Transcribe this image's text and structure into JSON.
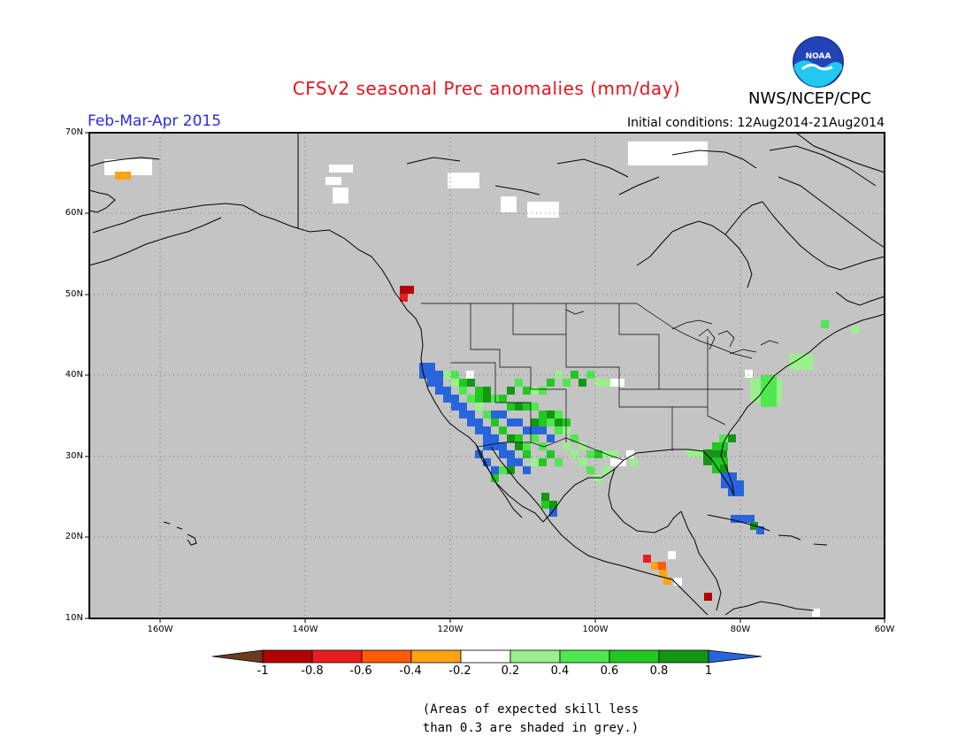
{
  "title": "CFSv2 seasonal Prec anomalies (mm/day)",
  "agency": "NWS/NCEP/CPC",
  "period": "Feb-Mar-Apr 2015",
  "initial_conditions": "Initial conditions: 12Aug2014-21Aug2014",
  "logo_text": "NOAA",
  "lat_labels": [
    "70N",
    "60N",
    "50N",
    "40N",
    "30N",
    "20N",
    "10N"
  ],
  "lon_labels": [
    "160W",
    "140W",
    "120W",
    "100W",
    "80W",
    "60W"
  ],
  "colorbar": {
    "labels": [
      "-1",
      "-0.8",
      "-0.6",
      "-0.4",
      "-0.2",
      "0.2",
      "0.4",
      "0.6",
      "0.8",
      "1"
    ],
    "colors": [
      "#6b3a20",
      "#b40000",
      "#e81e1e",
      "#ff5a0a",
      "#ffa214",
      "#ffffff",
      "#9af08c",
      "#50e650",
      "#21c821",
      "#149614",
      "#2864dc"
    ]
  },
  "note_line1": "(Areas of expected skill less",
  "note_line2": "than 0.3 are shaded in grey.)",
  "colors": {
    "grey": "#c4c4c4",
    "title": "#e8141c",
    "period": "#2a2ae0"
  }
}
